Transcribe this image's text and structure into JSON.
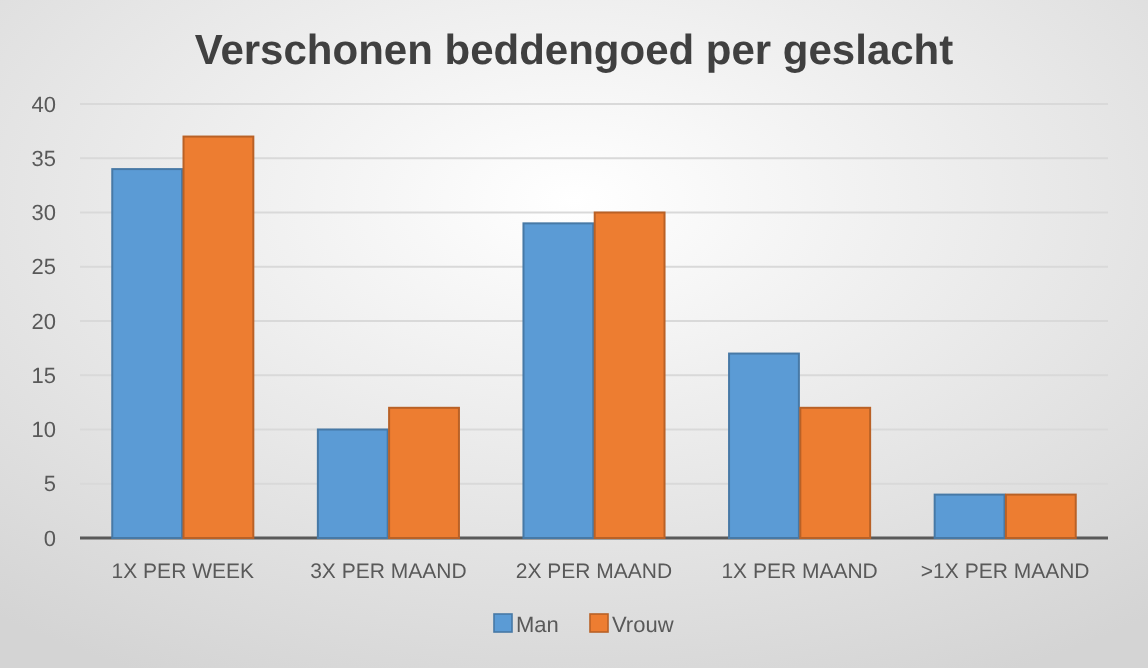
{
  "chart_data": {
    "type": "bar",
    "title": "Verschonen beddengoed per geslacht",
    "categories": [
      "1X PER WEEK",
      "3X PER MAAND",
      "2X PER MAAND",
      "1X PER MAAND",
      ">1X PER MAAND"
    ],
    "series": [
      {
        "name": "Man",
        "color": "#5b9bd5",
        "values": [
          34,
          10,
          29,
          17,
          4
        ]
      },
      {
        "name": "Vrouw",
        "color": "#ed7d31",
        "values": [
          37,
          12,
          30,
          12,
          4
        ]
      }
    ],
    "ylim": [
      0,
      40
    ],
    "yticks": [
      0,
      5,
      10,
      15,
      20,
      25,
      30,
      35,
      40
    ],
    "grid": "y",
    "legend": "bottom"
  }
}
